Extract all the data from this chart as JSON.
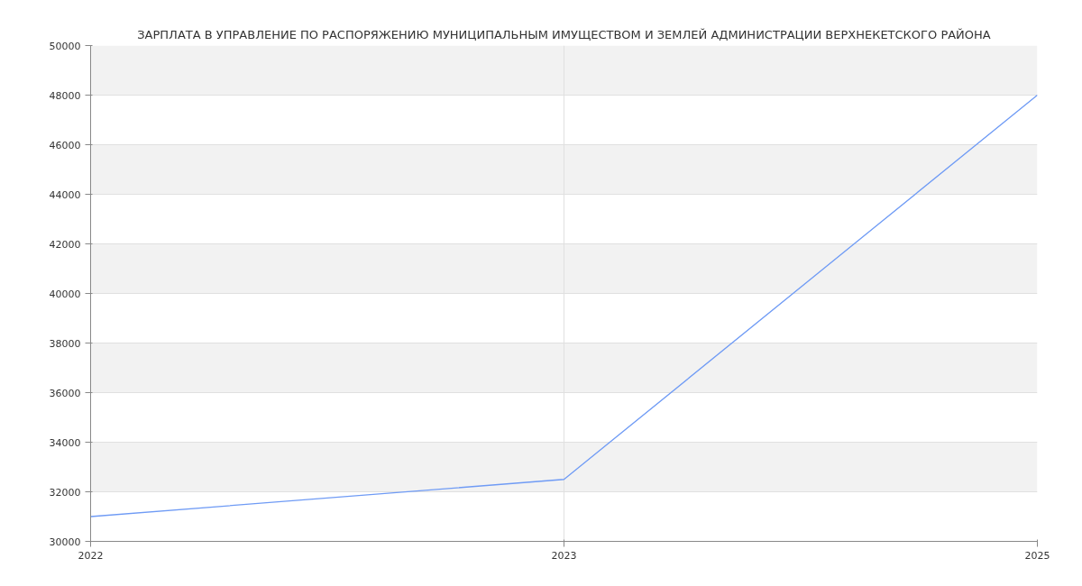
{
  "chart_data": {
    "type": "line",
    "title": "ЗАРПЛАТА В УПРАВЛЕНИЕ ПО РАСПОРЯЖЕНИЮ МУНИЦИПАЛЬНЫМ ИМУЩЕСТВОМ И ЗЕМЛЕЙ АДМИНИСТРАЦИИ ВЕРХНЕКЕТСКОГО РАЙОНА",
    "categories": [
      "2022",
      "2023",
      "2025"
    ],
    "series": [
      {
        "color": "#6f9bf5",
        "values": [
          31000,
          32500,
          48000
        ]
      }
    ],
    "ylim": [
      30000,
      50000
    ],
    "yticks": [
      30000,
      32000,
      34000,
      36000,
      38000,
      40000,
      42000,
      44000,
      46000,
      48000,
      50000
    ],
    "grid": true,
    "marker": "none",
    "line_style": "solid"
  }
}
